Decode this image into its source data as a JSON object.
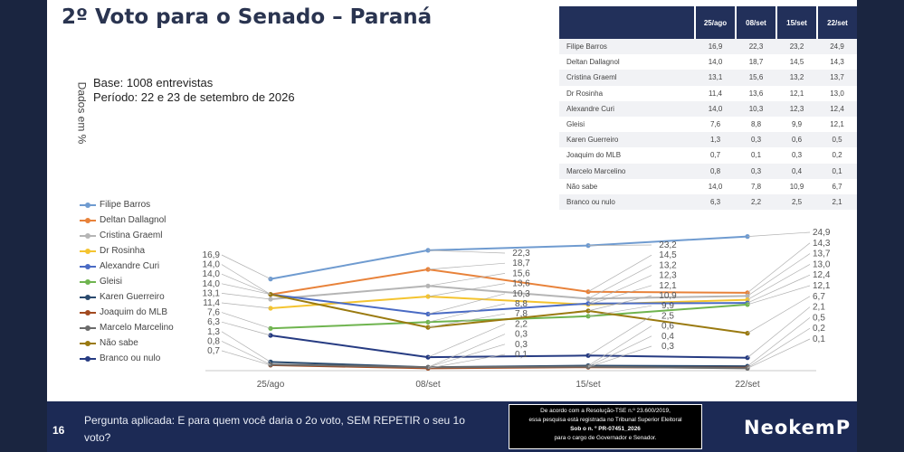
{
  "slide": {
    "title": "2º Voto para o Senado – Paraná",
    "y_label": "Dados em %",
    "base": "Base: 1008 entrevistas",
    "periodo": "Período: 22 e 23 de setembro de 2026"
  },
  "colors": {
    "Filipe Barros": "#6f9bd0",
    "Deltan Dallagnol": "#e8823a",
    "Cristina Graeml": "#b5b5b5",
    "Dr Rosinha": "#f4c430",
    "Alexandre Curi": "#4a6bc4",
    "Gleisi": "#6fb44f",
    "Karen Guerreiro": "#2a4a6e",
    "Joaquim do MLB": "#a24a20",
    "Marcelo Marcelino": "#6b6b6b",
    "Não sabe": "#9a7a10",
    "Branco ou nulo": "#263b82"
  },
  "table": {
    "headers": [
      "25/ago",
      "08/set",
      "15/set",
      "22/set"
    ],
    "rows": [
      {
        "name": "Filipe Barros",
        "values": [
          "16,9",
          "22,3",
          "23,2",
          "24,9"
        ]
      },
      {
        "name": "Deltan Dallagnol",
        "values": [
          "14,0",
          "18,7",
          "14,5",
          "14,3"
        ]
      },
      {
        "name": "Cristina Graeml",
        "values": [
          "13,1",
          "15,6",
          "13,2",
          "13,7"
        ]
      },
      {
        "name": "Dr Rosinha",
        "values": [
          "11,4",
          "13,6",
          "12,1",
          "13,0"
        ]
      },
      {
        "name": "Alexandre Curi",
        "values": [
          "14,0",
          "10,3",
          "12,3",
          "12,4"
        ]
      },
      {
        "name": "Gleisi",
        "values": [
          "7,6",
          "8,8",
          "9,9",
          "12,1"
        ]
      },
      {
        "name": "Karen Guerreiro",
        "values": [
          "1,3",
          "0,3",
          "0,6",
          "0,5"
        ]
      },
      {
        "name": "Joaquim do MLB",
        "values": [
          "0,7",
          "0,1",
          "0,3",
          "0,2"
        ]
      },
      {
        "name": "Marcelo Marcelino",
        "values": [
          "0,8",
          "0,3",
          "0,4",
          "0,1"
        ]
      },
      {
        "name": "Não sabe",
        "values": [
          "14,0",
          "7,8",
          "10,9",
          "6,7"
        ]
      },
      {
        "name": "Branco ou nulo",
        "values": [
          "6,3",
          "2,2",
          "2,5",
          "2,1"
        ]
      }
    ]
  },
  "chart_data": {
    "type": "line",
    "categories": [
      "25/ago",
      "08/set",
      "15/set",
      "22/set"
    ],
    "ylabel": "Dados em %",
    "ylim": [
      0,
      26
    ],
    "grid": false,
    "legend": "left",
    "series": [
      {
        "name": "Filipe Barros",
        "values": [
          16.9,
          22.3,
          23.2,
          24.9
        ],
        "labels": [
          "16,9",
          "22,3",
          "23,2",
          "24,9"
        ]
      },
      {
        "name": "Deltan Dallagnol",
        "values": [
          14.0,
          18.7,
          14.5,
          14.3
        ],
        "labels": [
          "14,0",
          "18,7",
          "14,5",
          "14,3"
        ]
      },
      {
        "name": "Cristina Graeml",
        "values": [
          13.1,
          15.6,
          13.2,
          13.7
        ],
        "labels": [
          "13,1",
          "15,6",
          "13,2",
          "13,7"
        ]
      },
      {
        "name": "Dr Rosinha",
        "values": [
          11.4,
          13.6,
          12.1,
          13.0
        ],
        "labels": [
          "11,4",
          "13,6",
          "12,1",
          "13,0"
        ]
      },
      {
        "name": "Alexandre Curi",
        "values": [
          14.0,
          10.3,
          12.3,
          12.4
        ],
        "labels": [
          "14,0",
          "10,3",
          "12,3",
          "12,4"
        ]
      },
      {
        "name": "Gleisi",
        "values": [
          7.6,
          8.8,
          9.9,
          12.1
        ],
        "labels": [
          "7,6",
          "8,8",
          "9,9",
          "12,1"
        ]
      },
      {
        "name": "Karen Guerreiro",
        "values": [
          1.3,
          0.3,
          0.6,
          0.5
        ],
        "labels": [
          "1,3",
          "0,3",
          "0,6",
          "0,5"
        ]
      },
      {
        "name": "Joaquim do MLB",
        "values": [
          0.7,
          0.1,
          0.3,
          0.2
        ],
        "labels": [
          "0,7",
          "0,1",
          "0,3",
          "0,2"
        ]
      },
      {
        "name": "Marcelo Marcelino",
        "values": [
          0.8,
          0.3,
          0.4,
          0.1
        ],
        "labels": [
          "0,8",
          "0,3",
          "0,4",
          "0,1"
        ]
      },
      {
        "name": "Não sabe",
        "values": [
          14.0,
          7.8,
          10.9,
          6.7
        ],
        "labels": [
          "14,0",
          "7,8",
          "10,9",
          "6,7"
        ]
      },
      {
        "name": "Branco ou nulo",
        "values": [
          6.3,
          2.2,
          2.5,
          2.1
        ],
        "labels": [
          "6,3",
          "2,2",
          "2,5",
          "2,1"
        ]
      }
    ]
  },
  "footer": {
    "page_number": "16",
    "question": "Pergunta aplicada: E para quem você daria o 2o voto, SEM REPETIR o seu 1o voto?",
    "tse_line1": "De acordo com a Resolução-TSE n.º 23.600/2019,",
    "tse_line2": "essa pesquisa está registrada no Tribunal Superior Eleitoral",
    "tse_line3": "Sob o n. º PR-07451_2026",
    "tse_line4": "para o cargo de Governador e Senador.",
    "logo": "NeokemP"
  }
}
